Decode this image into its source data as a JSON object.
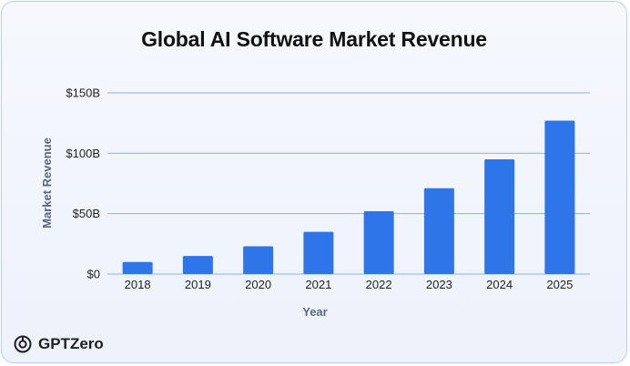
{
  "chart_data": {
    "type": "bar",
    "title": "Global AI Software Market Revenue",
    "xlabel": "Year",
    "ylabel": "Market Revenue",
    "categories": [
      "2018",
      "2019",
      "2020",
      "2021",
      "2022",
      "2023",
      "2024",
      "2025"
    ],
    "values": [
      10,
      15,
      23,
      35,
      52,
      71,
      95,
      127
    ],
    "ylim": [
      0,
      150
    ],
    "yticks": [
      0,
      50,
      100,
      150
    ],
    "ytick_labels": [
      "$0",
      "$50B",
      "$100B",
      "$150B"
    ],
    "grid": true,
    "bar_color": "#2f75ea",
    "grid_color": "#8fb0ee"
  },
  "brand": {
    "name": "GPTZero",
    "icon": "gptzero-logo-icon"
  }
}
